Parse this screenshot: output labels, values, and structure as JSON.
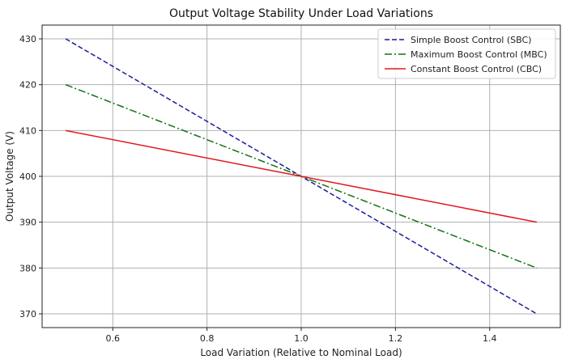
{
  "chart_data": {
    "type": "line",
    "title": "Output Voltage Stability Under Load Variations",
    "xlabel": "Load Variation (Relative to Nominal Load)",
    "ylabel": "Output Voltage (V)",
    "xlim": [
      0.45,
      1.55
    ],
    "ylim": [
      367,
      433
    ],
    "xticks": [
      0.6,
      0.8,
      1.0,
      1.2,
      1.4
    ],
    "xtick_labels": [
      "0.6",
      "0.8",
      "1.0",
      "1.2",
      "1.4"
    ],
    "yticks": [
      370,
      380,
      390,
      400,
      410,
      420,
      430
    ],
    "ytick_labels": [
      "370",
      "380",
      "390",
      "400",
      "410",
      "420",
      "430"
    ],
    "grid": true,
    "legend_position": "top-right",
    "series": [
      {
        "name": "Simple Boost Control (SBC)",
        "color": "#1c1c9c",
        "dash": "dashed",
        "x": [
          0.5,
          1.0,
          1.5
        ],
        "y": [
          430,
          400,
          370
        ]
      },
      {
        "name": "Maximum Boost Control (MBC)",
        "color": "#137113",
        "dash": "dashdot",
        "x": [
          0.5,
          1.0,
          1.5
        ],
        "y": [
          420,
          400,
          380
        ]
      },
      {
        "name": "Constant Boost Control (CBC)",
        "color": "#e0191e",
        "dash": "solid",
        "x": [
          0.5,
          1.0,
          1.5
        ],
        "y": [
          410,
          400,
          390
        ]
      }
    ]
  }
}
